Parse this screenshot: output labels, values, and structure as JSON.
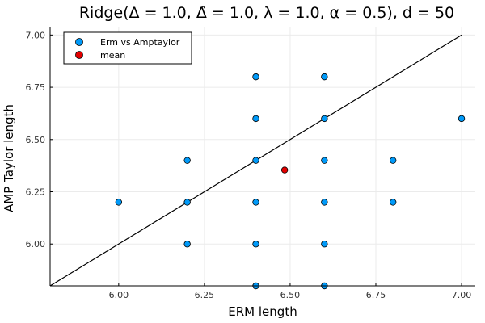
{
  "chart_data": {
    "type": "scatter",
    "title": "Ridge(Δ = 1.0, Δ̂ = 1.0, λ = 1.0, α = 0.5), d = 50",
    "xlabel": "ERM length",
    "ylabel": "AMP Taylor length",
    "xlim": [
      5.8,
      7.04
    ],
    "ylim": [
      5.8,
      7.04
    ],
    "xticks": [
      6.0,
      6.25,
      6.5,
      6.75,
      7.0
    ],
    "xtick_labels": [
      "6.00",
      "6.25",
      "6.50",
      "6.75",
      "7.00"
    ],
    "yticks": [
      6.0,
      6.25,
      6.5,
      6.75,
      7.0
    ],
    "ytick_labels": [
      "6.00",
      "6.25",
      "6.50",
      "6.75",
      "7.00"
    ],
    "grid": true,
    "legend_position": "top-left",
    "reference_line": {
      "x": [
        5.8,
        7.0
      ],
      "y": [
        5.8,
        7.0
      ],
      "color": "#000000"
    },
    "series": [
      {
        "name": "Erm vs Amptaylor",
        "color": "#009af9",
        "points": [
          [
            6.0,
            6.2
          ],
          [
            6.2,
            6.4
          ],
          [
            6.2,
            6.2
          ],
          [
            6.2,
            6.0
          ],
          [
            6.4,
            6.8
          ],
          [
            6.4,
            6.6
          ],
          [
            6.4,
            6.4
          ],
          [
            6.4,
            6.2
          ],
          [
            6.4,
            6.0
          ],
          [
            6.4,
            5.8
          ],
          [
            6.6,
            6.8
          ],
          [
            6.6,
            6.6
          ],
          [
            6.6,
            6.4
          ],
          [
            6.6,
            6.2
          ],
          [
            6.6,
            6.0
          ],
          [
            6.6,
            5.8
          ],
          [
            6.8,
            6.4
          ],
          [
            6.8,
            6.2
          ],
          [
            7.0,
            6.6
          ]
        ]
      },
      {
        "name": "mean",
        "color": "#e20000",
        "points": [
          [
            6.484,
            6.354
          ]
        ]
      }
    ]
  }
}
